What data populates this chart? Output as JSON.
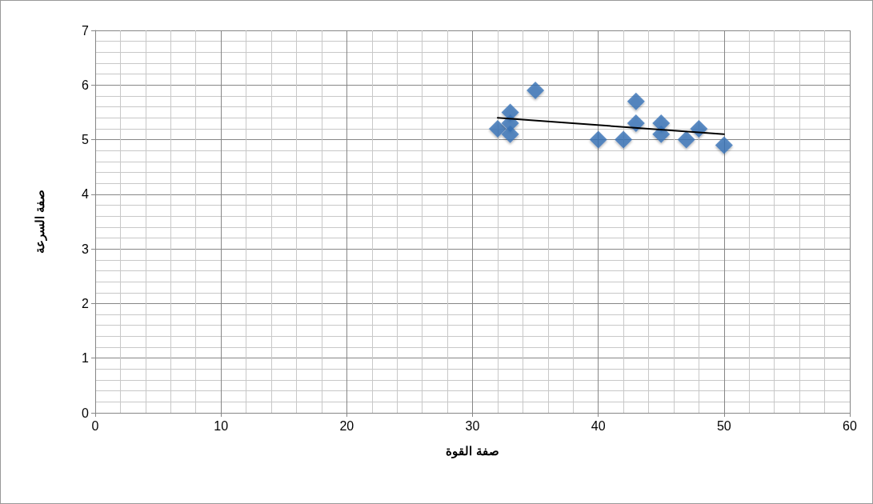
{
  "chart_data": {
    "type": "scatter",
    "xlabel": "صفة القوة",
    "ylabel": "صفة السرعة",
    "xlim": [
      0,
      60
    ],
    "xticks": [
      0,
      10,
      20,
      30,
      40,
      50,
      60
    ],
    "ylim": [
      0,
      7
    ],
    "yticks": [
      0,
      1,
      2,
      3,
      4,
      5,
      6,
      7
    ],
    "grid": true,
    "marker": "diamond",
    "series": [
      {
        "color": "#3a73b8",
        "x": [
          32,
          33,
          33,
          33,
          35,
          40,
          42,
          43,
          43,
          45,
          45,
          47,
          48,
          50
        ],
        "values": [
          5.2,
          5.5,
          5.3,
          5.1,
          5.9,
          5.0,
          5.0,
          5.7,
          5.3,
          5.3,
          5.1,
          5.0,
          5.2,
          4.9
        ]
      },
      {
        "type": "line",
        "color": "#000000",
        "marker": "none",
        "line_style": "solid",
        "x": [
          32,
          50
        ],
        "values": [
          5.4,
          5.1
        ]
      }
    ]
  }
}
